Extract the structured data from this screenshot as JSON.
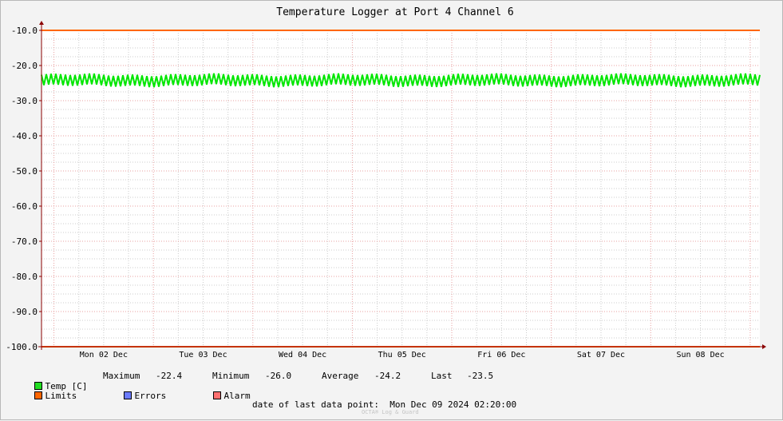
{
  "chart_data": {
    "type": "line",
    "title": "Temperature Logger at Port 4 Channel 6",
    "xlabel": "",
    "ylabel": "",
    "ylim": [
      -100.0,
      -10.0
    ],
    "y_ticks": [
      "-10.0",
      "-20.0",
      "-30.0",
      "-40.0",
      "-50.0",
      "-60.0",
      "-70.0",
      "-80.0",
      "-90.0",
      "-100.0"
    ],
    "x_tick_labels": [
      "Mon 02 Dec",
      "Tue 03 Dec",
      "Wed 04 Dec",
      "Thu 05 Dec",
      "Fri 06 Dec",
      "Sat 07 Dec",
      "Sun 08 Dec"
    ],
    "x_range": [
      "2024-12-01 21:00",
      "2024-12-09 02:20"
    ],
    "grid": true,
    "series": [
      {
        "name": "Temp [C]",
        "color": "#00e600",
        "kind": "band",
        "min": -26.0,
        "max": -22.4,
        "avg": -24.2,
        "last": -23.5
      },
      {
        "name": "Limits",
        "color": "#ff6600",
        "values": [
          -10.0,
          -100.0
        ]
      }
    ],
    "legend_placement": "bottom-left",
    "legend": {
      "temp": {
        "label": "Temp [C]",
        "color": "#22dd22"
      },
      "limits": {
        "label": "Limits",
        "color": "#ff6600"
      },
      "errors": {
        "label": "Errors",
        "color": "#6b7bff"
      },
      "alarm": {
        "label": "Alarm",
        "color": "#ff7070"
      }
    },
    "stats": {
      "maximum_label": "Maximum",
      "maximum": "-22.4",
      "minimum_label": "Minimum",
      "minimum": "-26.0",
      "average_label": "Average",
      "average": "-24.2",
      "last_label": "Last",
      "last": "-23.5"
    }
  },
  "footer": {
    "date_label": "date of last data point:",
    "date_value": "Mon Dec 09 2024 02:20:00",
    "watermark": "OCTA® Log & Guard"
  },
  "colors": {
    "background": "#f3f3f3",
    "plot_background": "#ffffff",
    "axis": "#8b0000",
    "major_grid": "#e8a0a0",
    "minor_grid": "#cccccc"
  }
}
